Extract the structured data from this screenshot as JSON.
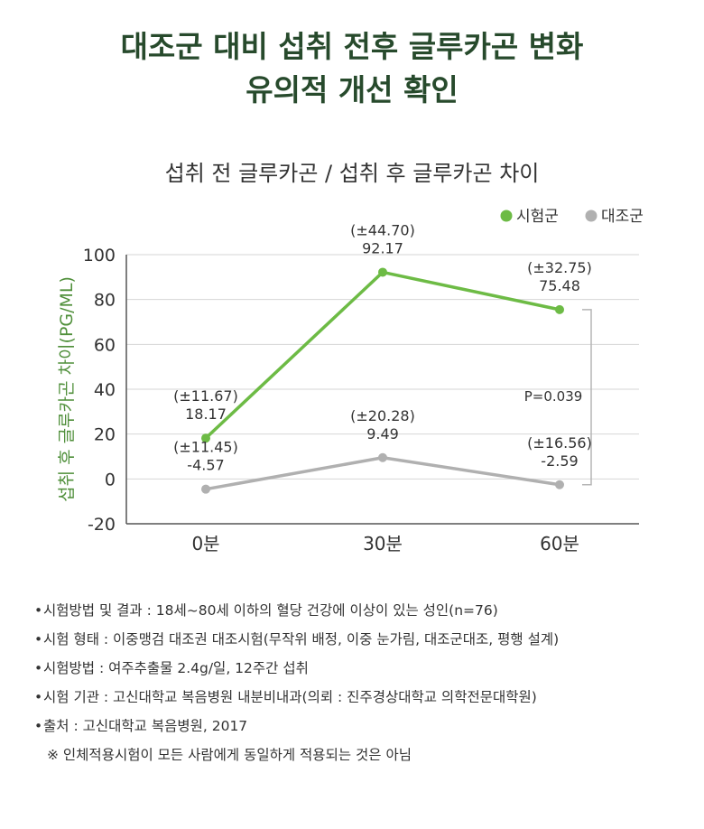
{
  "headline": {
    "line1": "대조군 대비 섭취 전후 글루카곤 변화",
    "line2": "유의적 개선 확인"
  },
  "colors": {
    "test": "#6dbb45",
    "control": "#b0b0b0",
    "headline": "#274a2c",
    "ylabel": "#4f8f3a"
  },
  "chart_data": {
    "type": "line",
    "title": "섭취 전 글루카곤 / 섭취 후 글루카곤 차이",
    "ylabel": "섭취 후 글루카곤 차이(PG/ML)",
    "xlabel": "",
    "categories": [
      "0분",
      "30분",
      "60분"
    ],
    "ylim": [
      -20,
      100
    ],
    "yticks": [
      "100",
      "80",
      "60",
      "40",
      "20",
      "0",
      "-20"
    ],
    "ytick_values": [
      100,
      80,
      60,
      40,
      20,
      0,
      -20
    ],
    "legend_position": "top-right",
    "series": [
      {
        "name": "시험군",
        "values": [
          18.17,
          92.17,
          75.48
        ],
        "labels": [
          "18.17",
          "92.17",
          "75.48"
        ],
        "errors": [
          "(±11.67)",
          "(±44.70)",
          "(±32.75)"
        ]
      },
      {
        "name": "대조군",
        "values": [
          -4.57,
          9.49,
          -2.59
        ],
        "labels": [
          "-4.57",
          "9.49",
          "-2.59"
        ],
        "errors": [
          "(±11.45)",
          "(±20.28)",
          "(±16.56)"
        ]
      }
    ],
    "annotation": "P=0.039"
  },
  "notes": [
    "시험방법 및 결과 : 18세~80세 이하의 혈당 건강에 이상이 있는 성인(n=76)",
    "시험 형태 : 이중맹검 대조권 대조시험(무작위 배정, 이중 눈가림, 대조군대조, 평행 설계)",
    "시험방법 : 여주추출물 2.4g/일, 12주간 섭취",
    "시험 기관 : 고신대학교 복음병원 내분비내과(의뢰 : 진주경상대학교 의학전문대학원)",
    "출처 : 고신대학교 복음병원, 2017"
  ],
  "disclaimer": "※ 인체적용시험이 모든 사람에게 동일하게 적용되는 것은 아님"
}
